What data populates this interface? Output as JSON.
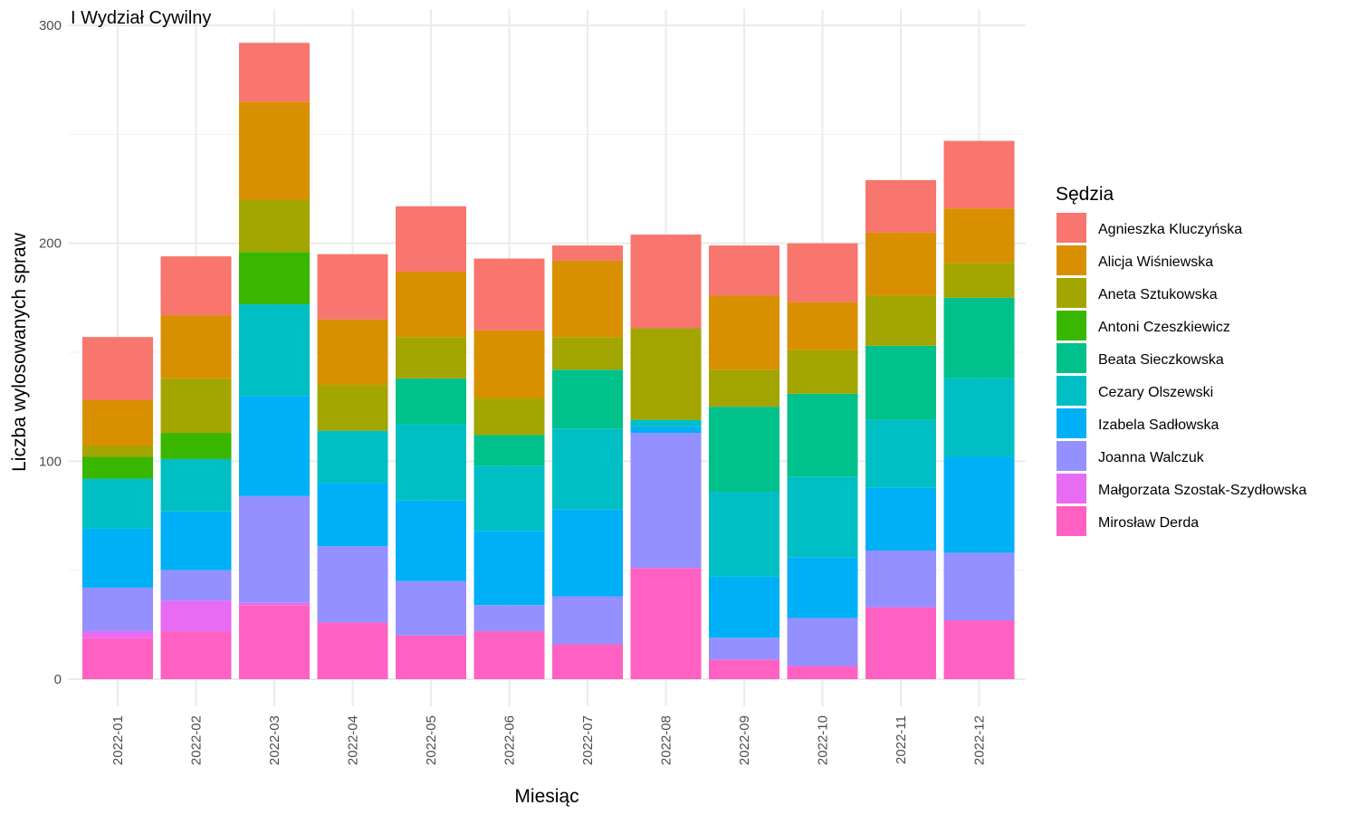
{
  "chart_data": {
    "type": "bar",
    "stacked": true,
    "title": "I Wydział Cywilny",
    "xlabel": "Miesiąc",
    "ylabel": "Liczba wylosowanych spraw",
    "ylim": [
      0,
      300
    ],
    "y_ticks": [
      0,
      100,
      200,
      300
    ],
    "grid": true,
    "legend_title": "Sędzia",
    "legend_position": "right",
    "categories": [
      "2022-01",
      "2022-02",
      "2022-03",
      "2022-04",
      "2022-05",
      "2022-06",
      "2022-07",
      "2022-08",
      "2022-09",
      "2022-10",
      "2022-11",
      "2022-12"
    ],
    "series": [
      {
        "name": "Mirosław Derda",
        "color": "#FF61C3",
        "values": [
          19,
          22,
          34,
          26,
          20,
          22,
          16,
          51,
          9,
          6,
          33,
          27
        ]
      },
      {
        "name": "Małgorzata Szostak-Szydłowska",
        "color": "#E76BF3",
        "values": [
          3,
          14,
          1,
          0,
          0,
          0,
          0,
          0,
          0,
          0,
          0,
          0
        ]
      },
      {
        "name": "Joanna Walczuk",
        "color": "#9590FF",
        "values": [
          20,
          14,
          49,
          35,
          25,
          12,
          22,
          62,
          10,
          22,
          26,
          31
        ]
      },
      {
        "name": "Izabela Sadłowska",
        "color": "#00B0F6",
        "values": [
          27,
          27,
          46,
          29,
          37,
          34,
          40,
          3,
          28,
          28,
          29,
          44
        ]
      },
      {
        "name": "Cezary Olszewski",
        "color": "#00BFC4",
        "values": [
          23,
          24,
          42,
          24,
          35,
          30,
          37,
          3,
          39,
          37,
          31,
          36
        ]
      },
      {
        "name": "Beata Sieczkowska",
        "color": "#00C08B",
        "values": [
          0,
          0,
          0,
          0,
          21,
          14,
          27,
          0,
          39,
          38,
          34,
          37
        ]
      },
      {
        "name": "Antoni Czeszkiewicz",
        "color": "#39B600",
        "values": [
          10,
          12,
          24,
          0,
          0,
          0,
          0,
          0,
          0,
          0,
          0,
          0
        ]
      },
      {
        "name": "Aneta Sztukowska",
        "color": "#A3A500",
        "values": [
          5,
          25,
          24,
          21,
          19,
          17,
          15,
          42,
          17,
          20,
          23,
          16
        ]
      },
      {
        "name": "Alicja Wiśniewska",
        "color": "#D89000",
        "values": [
          21,
          29,
          45,
          30,
          30,
          31,
          35,
          0,
          34,
          22,
          29,
          25
        ]
      },
      {
        "name": "Agnieszka Kluczyńska",
        "color": "#F8766D",
        "values": [
          29,
          27,
          27,
          30,
          30,
          33,
          7,
          43,
          23,
          27,
          24,
          31
        ]
      }
    ],
    "legend_order": [
      "Agnieszka Kluczyńska",
      "Alicja Wiśniewska",
      "Aneta Sztukowska",
      "Antoni Czeszkiewicz",
      "Beata Sieczkowska",
      "Cezary Olszewski",
      "Izabela Sadłowska",
      "Joanna Walczuk",
      "Małgorzata Szostak-Szydłowska",
      "Mirosław Derda"
    ]
  }
}
